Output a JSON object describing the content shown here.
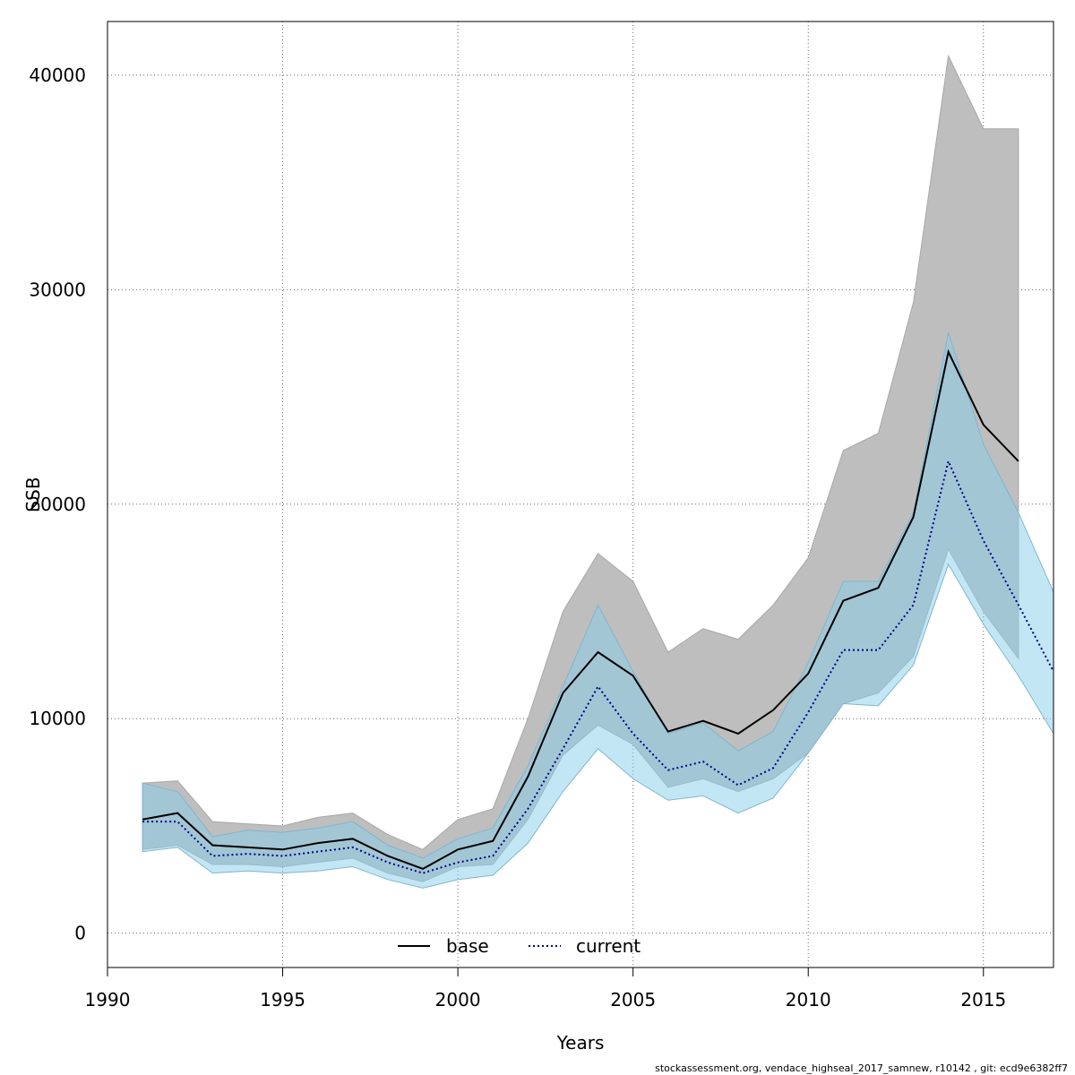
{
  "chart_data": {
    "type": "line",
    "xlabel": "Years",
    "ylabel": "SSB",
    "xlim": [
      1990,
      2017
    ],
    "ylim": [
      -1600,
      42500
    ],
    "grid": true,
    "x_ticks": [
      "1990",
      "1995",
      "2000",
      "2005",
      "2010",
      "2015"
    ],
    "y_ticks": [
      "0",
      "10000",
      "20000",
      "30000",
      "40000"
    ],
    "legend": {
      "position": "bottom-center",
      "entries": [
        "base",
        "current"
      ]
    },
    "series": [
      {
        "name": "base",
        "color": "#000000",
        "band_color": "#bebebe",
        "x": [
          1991,
          1992,
          1993,
          1994,
          1995,
          1996,
          1997,
          1998,
          1999,
          2000,
          2001,
          2002,
          2003,
          2004,
          2005,
          2006,
          2007,
          2008,
          2009,
          2010,
          2011,
          2012,
          2013,
          2014,
          2015,
          2016
        ],
        "y": [
          5300,
          5600,
          4100,
          4000,
          3900,
          4200,
          4400,
          3600,
          3000,
          3900,
          4300,
          7300,
          11200,
          13100,
          12000,
          9400,
          9900,
          9300,
          10400,
          12100,
          15500,
          16100,
          19400,
          27100,
          23700,
          22000
        ],
        "lower": [
          3900,
          4100,
          3200,
          3200,
          3100,
          3300,
          3500,
          2800,
          2400,
          3100,
          3200,
          5300,
          8300,
          9700,
          8800,
          6800,
          7200,
          6600,
          7200,
          8400,
          10700,
          11200,
          12900,
          17900,
          15000,
          12800
        ],
        "upper": [
          7000,
          7100,
          5200,
          5100,
          5000,
          5400,
          5600,
          4600,
          3900,
          5300,
          5800,
          10000,
          15000,
          17700,
          16400,
          13100,
          14200,
          13700,
          15300,
          17500,
          22500,
          23300,
          29400,
          40900,
          37500,
          37500
        ]
      },
      {
        "name": "current",
        "color": "#00008b",
        "band_color": "#87ceeb",
        "x": [
          1991,
          1992,
          1993,
          1994,
          1995,
          1996,
          1997,
          1998,
          1999,
          2000,
          2001,
          2002,
          2003,
          2004,
          2005,
          2006,
          2007,
          2008,
          2009,
          2010,
          2011,
          2012,
          2013,
          2014,
          2015,
          2016,
          2017
        ],
        "y": [
          5200,
          5200,
          3600,
          3700,
          3600,
          3800,
          4000,
          3300,
          2800,
          3300,
          3600,
          5800,
          8600,
          11500,
          9300,
          7600,
          8000,
          6900,
          7700,
          10300,
          13200,
          13200,
          15300,
          22000,
          18300,
          15300,
          12200
        ],
        "lower": [
          3800,
          4000,
          2800,
          2900,
          2800,
          2900,
          3100,
          2500,
          2100,
          2500,
          2700,
          4200,
          6600,
          8600,
          7200,
          6200,
          6400,
          5600,
          6300,
          8400,
          10700,
          10600,
          12500,
          17200,
          14400,
          12000,
          9300
        ],
        "upper": [
          7000,
          6600,
          4500,
          4800,
          4700,
          4900,
          5200,
          4100,
          3500,
          4400,
          4900,
          7800,
          11500,
          15300,
          12200,
          9300,
          9800,
          8500,
          9400,
          12600,
          16400,
          16400,
          19600,
          28000,
          22800,
          19600,
          15900
        ]
      }
    ]
  },
  "footer": "stockassessment.org, vendace_highseal_2017_samnew, r10142 , git: ecd9e6382ff7"
}
